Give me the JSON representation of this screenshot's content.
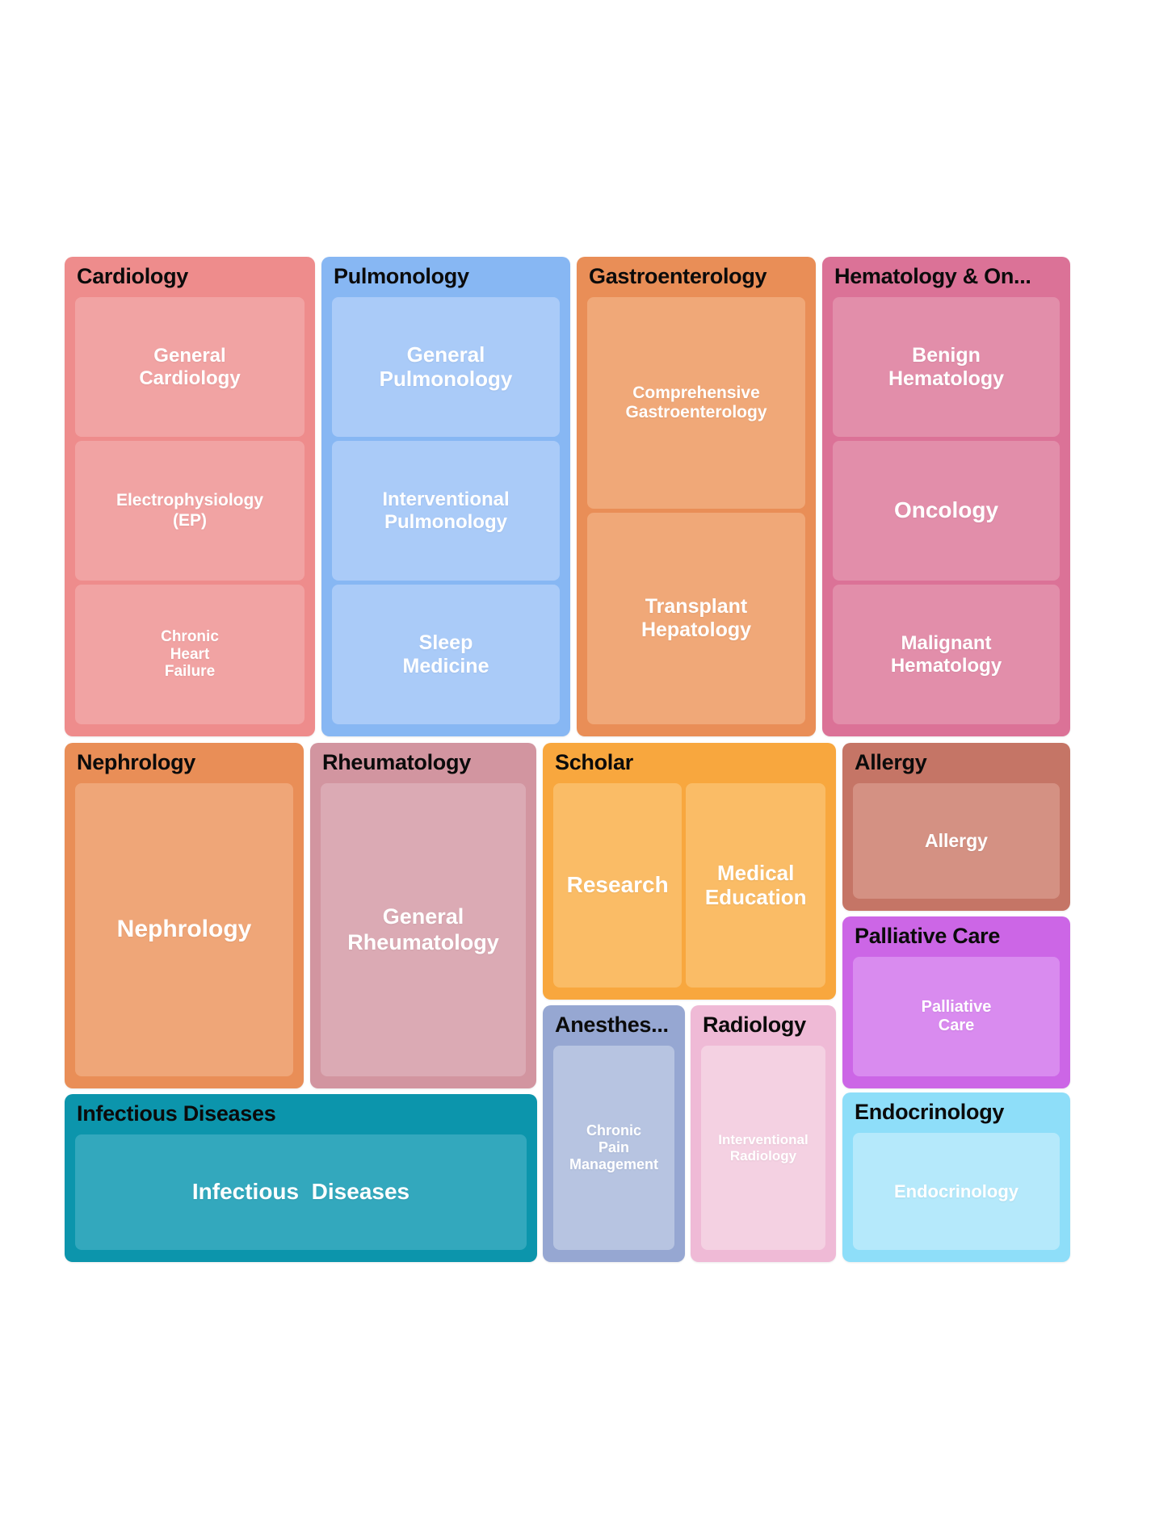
{
  "page": {
    "background_color": "#ffffff",
    "title_text_color": "#0b0b0b",
    "leaf_text_color": "#ffffff"
  },
  "treemap": {
    "sections": [
      {
        "id": "cardiology",
        "title": "Cardiology",
        "color": "#EE8C8C",
        "child_color": "#F1A3A3",
        "children": [
          {
            "label": "General\nCardiology"
          },
          {
            "label": "Electrophysiology\n(EP)"
          },
          {
            "label": "Chronic\nHeart\nFailure"
          }
        ]
      },
      {
        "id": "pulmonology",
        "title": "Pulmonology",
        "color": "#87B7F3",
        "child_color": "#AACBF8",
        "children": [
          {
            "label": "General\nPulmonology"
          },
          {
            "label": "Interventional\nPulmonology"
          },
          {
            "label": "Sleep\nMedicine"
          }
        ]
      },
      {
        "id": "gastroenterology",
        "title": "Gastroenterology",
        "color": "#E98E57",
        "child_color": "#F0A878",
        "children": [
          {
            "label": "Comprehensive\nGastroenterology"
          },
          {
            "label": "Transplant\nHepatology"
          }
        ]
      },
      {
        "id": "hematology-oncology",
        "title": "Hematology & On...",
        "color": "#DB7297",
        "child_color": "#E28EAA",
        "children": [
          {
            "label": "Benign\nHematology"
          },
          {
            "label": "Oncology"
          },
          {
            "label": "Malignant\nHematology"
          }
        ]
      },
      {
        "id": "nephrology",
        "title": "Nephrology",
        "color": "#E98E57",
        "child_color": "#EFA678",
        "children": [
          {
            "label": "Nephrology"
          }
        ]
      },
      {
        "id": "rheumatology",
        "title": "Rheumatology",
        "color": "#D295A0",
        "child_color": "#DBAAB4",
        "children": [
          {
            "label": "General\nRheumatology"
          }
        ]
      },
      {
        "id": "scholar",
        "title": "Scholar",
        "color": "#F8A73E",
        "child_color": "#FABC66",
        "children": [
          {
            "label": "Research"
          },
          {
            "label": "Medical\nEducation"
          }
        ]
      },
      {
        "id": "allergy",
        "title": "Allergy",
        "color": "#C57566",
        "child_color": "#D49183",
        "children": [
          {
            "label": "Allergy"
          }
        ]
      },
      {
        "id": "palliative-care",
        "title": "Palliative Care",
        "color": "#CC66E6",
        "child_color": "#D98BEF",
        "children": [
          {
            "label": "Palliative\nCare"
          }
        ]
      },
      {
        "id": "anesthesiology",
        "title": "Anesthes...",
        "color": "#96A7D2",
        "child_color": "#B7C4E1",
        "children": [
          {
            "label": "Chronic\nPain\nManagement"
          }
        ]
      },
      {
        "id": "radiology",
        "title": "Radiology",
        "color": "#EFBAD6",
        "child_color": "#F4D1E2",
        "children": [
          {
            "label": "Interventional\nRadiology"
          }
        ]
      },
      {
        "id": "infectious-diseases",
        "title": "Infectious Diseases",
        "color": "#0C95AC",
        "child_color": "#33A8BD",
        "children": [
          {
            "label": "Infectious  Diseases"
          }
        ]
      },
      {
        "id": "endocrinology",
        "title": "Endocrinology",
        "color": "#8EDEF9",
        "child_color": "#B5E9FB",
        "children": [
          {
            "label": "Endocrinology"
          }
        ]
      }
    ]
  },
  "chart_data": {
    "type": "treemap",
    "title": "",
    "legend": "none",
    "hierarchy": [
      {
        "name": "Cardiology",
        "approx_share_pct": 12.3,
        "children": [
          "General Cardiology",
          "Electrophysiology (EP)",
          "Chronic Heart Failure"
        ]
      },
      {
        "name": "Pulmonology",
        "approx_share_pct": 12.2,
        "children": [
          "General Pulmonology",
          "Interventional Pulmonology",
          "Sleep Medicine"
        ]
      },
      {
        "name": "Gastroenterology",
        "approx_share_pct": 11.7,
        "children": [
          "Comprehensive Gastroenterology",
          "Transplant Hepatology"
        ]
      },
      {
        "name": "Hematology & Oncology",
        "approx_share_pct": 12.2,
        "children": [
          "Benign Hematology",
          "Oncology",
          "Malignant Hematology"
        ]
      },
      {
        "name": "Nephrology",
        "approx_share_pct": 8.4,
        "children": [
          "Nephrology"
        ]
      },
      {
        "name": "Rheumatology",
        "approx_share_pct": 8.0,
        "children": [
          "General Rheumatology"
        ]
      },
      {
        "name": "Scholar",
        "approx_share_pct": 7.7,
        "children": [
          "Research",
          "Medical Education"
        ]
      },
      {
        "name": "Allergy",
        "approx_share_pct": 3.9,
        "children": [
          "Allergy"
        ]
      },
      {
        "name": "Palliative Care",
        "approx_share_pct": 4.0,
        "children": [
          "Palliative Care"
        ]
      },
      {
        "name": "Anesthesiology",
        "approx_share_pct": 3.7,
        "children": [
          "Chronic Pain Management"
        ]
      },
      {
        "name": "Radiology",
        "approx_share_pct": 3.8,
        "children": [
          "Interventional Radiology"
        ]
      },
      {
        "name": "Infectious Diseases",
        "approx_share_pct": 8.1,
        "children": [
          "Infectious Diseases"
        ]
      },
      {
        "name": "Endocrinology",
        "approx_share_pct": 3.9,
        "children": [
          "Endocrinology"
        ]
      }
    ]
  }
}
